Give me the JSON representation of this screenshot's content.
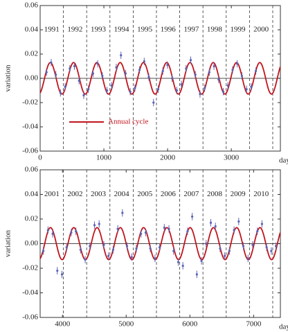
{
  "chart_data": [
    {
      "type": "scatter",
      "xlabel": "day",
      "ylabel": "variation",
      "xlim": [
        0,
        3770
      ],
      "ylim": [
        -0.06,
        0.06
      ],
      "xticks": [
        0,
        1000,
        2000,
        3000
      ],
      "yticks": [
        -0.06,
        -0.04,
        -0.02,
        {
          "value": 0,
          "label": "0.00"
        },
        0.02,
        0.04,
        0.06
      ],
      "year_boundaries": [
        365,
        730,
        1095,
        1460,
        1825,
        2190,
        2555,
        2920,
        3285,
        3650
      ],
      "year_labels": {
        "labels": [
          "1991",
          "1992",
          "1993",
          "1994",
          "1995",
          "1996",
          "1997",
          "1998",
          "1999",
          "2000"
        ],
        "x": [
          182,
          547,
          912,
          1277,
          1642,
          2007,
          2372,
          2737,
          3102,
          3467
        ],
        "y": 0.04
      },
      "legend": "lower left",
      "series": [
        {
          "name": "Annual cycle",
          "type": "line",
          "color": "#c0141c",
          "amplitude": 0.013,
          "period": 365.25,
          "peak_day": 160
        },
        {
          "type": "scatter",
          "color": "#5a64b4",
          "error": 0.003,
          "x": [
            100,
            173,
            246,
            319,
            392,
            465,
            538,
            611,
            684,
            757,
            830,
            903,
            976,
            1049,
            1122,
            1195,
            1268,
            1341,
            1414,
            1487,
            1560,
            1633,
            1706,
            1779,
            1852,
            1925,
            1998,
            2071,
            2144,
            2217,
            2290,
            2363,
            2436,
            2509,
            2582,
            2655,
            2728,
            2801,
            2874,
            2947,
            3020,
            3093,
            3166,
            3239,
            3312,
            3385
          ],
          "y": [
            0.005,
            0.013,
            0.003,
            -0.012,
            -0.007,
            0.008,
            0.01,
            -0.002,
            -0.014,
            -0.009,
            0.004,
            0.012,
            0.002,
            -0.01,
            -0.006,
            0.009,
            0.019,
            0.004,
            -0.011,
            -0.008,
            0.007,
            0.014,
            0.001,
            -0.02,
            -0.009,
            0.006,
            0.011,
            0.0,
            -0.01,
            -0.005,
            0.008,
            0.015,
            0.003,
            -0.013,
            -0.008,
            0.005,
            0.01,
            -0.001,
            -0.011,
            -0.006,
            0.007,
            0.012,
            0.002,
            -0.009,
            -0.007,
            0.006
          ]
        }
      ]
    },
    {
      "type": "scatter",
      "xlabel": "day",
      "ylabel": "variation",
      "xlim": [
        3650,
        7420
      ],
      "ylim": [
        -0.06,
        0.06
      ],
      "xticks": [
        4000,
        5000,
        6000,
        7000
      ],
      "yticks": [
        -0.06,
        -0.04,
        -0.02,
        {
          "value": 0,
          "label": "0.00"
        },
        0.02,
        0.04,
        0.06
      ],
      "year_boundaries": [
        4015,
        4380,
        4745,
        5110,
        5475,
        5840,
        6205,
        6570,
        6935,
        7300
      ],
      "year_labels": {
        "labels": [
          "2001",
          "2002",
          "2003",
          "2004",
          "2005",
          "2006",
          "2007",
          "2008",
          "2009",
          "2010"
        ],
        "x": [
          3833,
          4198,
          4563,
          4928,
          5293,
          5658,
          6023,
          6388,
          6753,
          7118
        ],
        "y": 0.04
      },
      "series": [
        {
          "type": "line",
          "color": "#c0141c",
          "amplitude": 0.013,
          "period": 365.25,
          "peak_day": 160
        },
        {
          "type": "scatter",
          "color": "#5a64b4",
          "error": 0.003,
          "x": [
            3700,
            3773,
            3846,
            3919,
            3992,
            4065,
            4138,
            4211,
            4284,
            4357,
            4430,
            4503,
            4576,
            4649,
            4722,
            4795,
            4868,
            4941,
            5014,
            5087,
            5160,
            5233,
            5306,
            5379,
            5452,
            5525,
            5598,
            5671,
            5744,
            5817,
            5890,
            5963,
            6036,
            6109,
            6182,
            6255,
            6328,
            6401,
            6474,
            6547,
            6620,
            6693,
            6766,
            6839,
            6912,
            6985,
            7058,
            7131,
            7204,
            7277,
            7350
          ],
          "y": [
            -0.006,
            0.011,
            0.008,
            -0.022,
            -0.025,
            -0.003,
            0.009,
            0.01,
            -0.005,
            -0.013,
            -0.002,
            0.015,
            0.016,
            -0.001,
            -0.01,
            -0.005,
            0.012,
            0.025,
            -0.002,
            -0.011,
            -0.004,
            0.008,
            0.009,
            -0.004,
            -0.012,
            -0.003,
            0.013,
            0.012,
            -0.006,
            -0.015,
            -0.018,
            0.01,
            0.022,
            -0.025,
            -0.014,
            0.0,
            0.017,
            0.014,
            -0.004,
            -0.01,
            -0.006,
            0.011,
            0.018,
            -0.002,
            -0.012,
            -0.001,
            0.01,
            0.016,
            -0.003,
            -0.006,
            -0.002
          ]
        }
      ]
    }
  ]
}
